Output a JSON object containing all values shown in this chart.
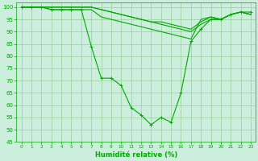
{
  "xlabel": "Humidité relative (%)",
  "background_color": "#cceedd",
  "grid_color": "#99cc99",
  "line_color": "#00aa00",
  "xlim": [
    -0.5,
    23.5
  ],
  "ylim": [
    45,
    102
  ],
  "yticks": [
    45,
    50,
    55,
    60,
    65,
    70,
    75,
    80,
    85,
    90,
    95,
    100
  ],
  "xticks": [
    0,
    1,
    2,
    3,
    4,
    5,
    6,
    7,
    8,
    9,
    10,
    11,
    12,
    13,
    14,
    15,
    16,
    17,
    18,
    19,
    20,
    21,
    22,
    23
  ],
  "series": [
    [
      100,
      100,
      100,
      99,
      99,
      99,
      99,
      84,
      71,
      71,
      68,
      59,
      56,
      52,
      55,
      53,
      65,
      86,
      91,
      95,
      95,
      97,
      98,
      98
    ],
    [
      100,
      100,
      100,
      99,
      99,
      99,
      99,
      99,
      96,
      95,
      94,
      93,
      92,
      91,
      90,
      89,
      88,
      87,
      95,
      96,
      95,
      97,
      98,
      97
    ],
    [
      100,
      100,
      100,
      100,
      100,
      100,
      100,
      100,
      99,
      98,
      97,
      96,
      95,
      94,
      93,
      92,
      91,
      90,
      93,
      95,
      95,
      97,
      98,
      97
    ],
    [
      100,
      100,
      100,
      100,
      100,
      100,
      100,
      100,
      99,
      98,
      97,
      96,
      95,
      94,
      94,
      93,
      92,
      91,
      94,
      96,
      95,
      97,
      98,
      97
    ]
  ],
  "series_with_markers": [
    0
  ],
  "xlabel_fontsize": 6,
  "ytick_fontsize": 5,
  "xtick_fontsize": 4.2
}
